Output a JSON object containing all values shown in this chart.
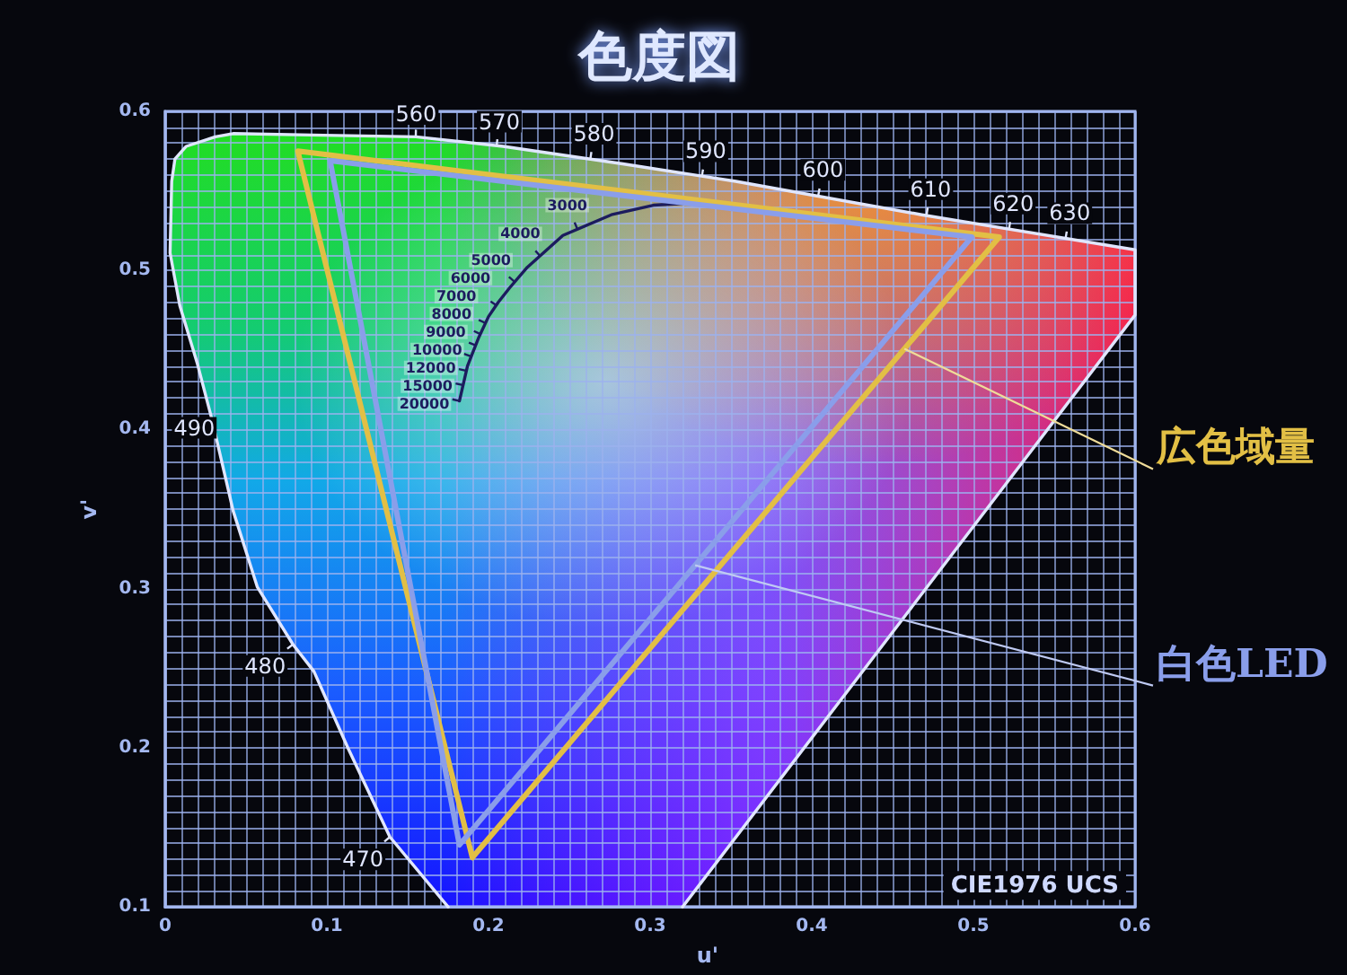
{
  "chart_data": {
    "type": "line",
    "title": "色度図",
    "xlabel": "u'",
    "ylabel": "v'",
    "xlim": [
      0,
      0.6
    ],
    "ylim": [
      0.1,
      0.6
    ],
    "xticks": [
      0,
      {
        "value": 0.01,
        "label": null
      },
      {
        "value": 0.02,
        "label": null
      },
      {
        "value": 0.03,
        "label": null
      },
      {
        "value": 0.04,
        "label": null
      },
      {
        "value": 0.05,
        "label": null
      },
      {
        "value": 0.06,
        "label": null
      },
      {
        "value": 0.07,
        "label": null
      },
      {
        "value": 0.08,
        "label": null
      },
      {
        "value": 0.09,
        "label": null
      },
      0.1,
      {
        "value": 0.11,
        "label": null
      },
      {
        "value": 0.12,
        "label": null
      },
      {
        "value": 0.13,
        "label": null
      },
      {
        "value": 0.14,
        "label": null
      },
      {
        "value": 0.15,
        "label": null
      },
      {
        "value": 0.16,
        "label": null
      },
      {
        "value": 0.17,
        "label": null
      },
      {
        "value": 0.18,
        "label": null
      },
      {
        "value": 0.19,
        "label": null
      },
      0.2,
      {
        "value": 0.21,
        "label": null
      },
      {
        "value": 0.22,
        "label": null
      },
      {
        "value": 0.23,
        "label": null
      },
      {
        "value": 0.24,
        "label": null
      },
      {
        "value": 0.25,
        "label": null
      },
      {
        "value": 0.26,
        "label": null
      },
      {
        "value": 0.27,
        "label": null
      },
      {
        "value": 0.28,
        "label": null
      },
      {
        "value": 0.29,
        "label": null
      },
      0.3,
      {
        "value": 0.31,
        "label": null
      },
      {
        "value": 0.32,
        "label": null
      },
      {
        "value": 0.33,
        "label": null
      },
      {
        "value": 0.34,
        "label": null
      },
      {
        "value": 0.35,
        "label": null
      },
      {
        "value": 0.36,
        "label": null
      },
      {
        "value": 0.37,
        "label": null
      },
      {
        "value": 0.38,
        "label": null
      },
      {
        "value": 0.39,
        "label": null
      },
      0.4,
      {
        "value": 0.41,
        "label": null
      },
      {
        "value": 0.42,
        "label": null
      },
      {
        "value": 0.43,
        "label": null
      },
      {
        "value": 0.44,
        "label": null
      },
      {
        "value": 0.45,
        "label": null
      },
      {
        "value": 0.46,
        "label": null
      },
      {
        "value": 0.47,
        "label": null
      },
      {
        "value": 0.48,
        "label": null
      },
      {
        "value": 0.49,
        "label": null
      },
      0.5,
      {
        "value": 0.51,
        "label": null
      },
      {
        "value": 0.52,
        "label": null
      },
      {
        "value": 0.53,
        "label": null
      },
      {
        "value": 0.54,
        "label": null
      },
      {
        "value": 0.55,
        "label": null
      },
      {
        "value": 0.56,
        "label": null
      },
      {
        "value": 0.57,
        "label": null
      },
      {
        "value": 0.58,
        "label": null
      },
      {
        "value": 0.59,
        "label": null
      },
      0.6
    ],
    "yticks": [
      0.1,
      {
        "value": 0.11,
        "label": null
      },
      {
        "value": 0.12,
        "label": null
      },
      {
        "value": 0.13,
        "label": null
      },
      {
        "value": 0.14,
        "label": null
      },
      {
        "value": 0.15,
        "label": null
      },
      {
        "value": 0.16,
        "label": null
      },
      {
        "value": 0.17,
        "label": null
      },
      {
        "value": 0.18,
        "label": null
      },
      {
        "value": 0.19,
        "label": null
      },
      0.2,
      {
        "value": 0.21,
        "label": null
      },
      {
        "value": 0.22,
        "label": null
      },
      {
        "value": 0.23,
        "label": null
      },
      {
        "value": 0.24,
        "label": null
      },
      {
        "value": 0.25,
        "label": null
      },
      {
        "value": 0.26,
        "label": null
      },
      {
        "value": 0.27,
        "label": null
      },
      {
        "value": 0.28,
        "label": null
      },
      {
        "value": 0.29,
        "label": null
      },
      0.3,
      {
        "value": 0.31,
        "label": null
      },
      {
        "value": 0.32,
        "label": null
      },
      {
        "value": 0.33,
        "label": null
      },
      {
        "value": 0.34,
        "label": null
      },
      {
        "value": 0.35,
        "label": null
      },
      {
        "value": 0.36,
        "label": null
      },
      {
        "value": 0.37,
        "label": null
      },
      {
        "value": 0.38,
        "label": null
      },
      {
        "value": 0.39,
        "label": null
      },
      0.4,
      {
        "value": 0.41,
        "label": null
      },
      {
        "value": 0.42,
        "label": null
      },
      {
        "value": 0.43,
        "label": null
      },
      {
        "value": 0.44,
        "label": null
      },
      {
        "value": 0.45,
        "label": null
      },
      {
        "value": 0.46,
        "label": null
      },
      {
        "value": 0.47,
        "label": null
      },
      {
        "value": 0.48,
        "label": null
      },
      {
        "value": 0.49,
        "label": null
      },
      0.5,
      {
        "value": 0.51,
        "label": null
      },
      {
        "value": 0.52,
        "label": null
      },
      {
        "value": 0.53,
        "label": null
      },
      {
        "value": 0.54,
        "label": null
      },
      {
        "value": 0.55,
        "label": null
      },
      {
        "value": 0.56,
        "label": null
      },
      {
        "value": 0.57,
        "label": null
      },
      {
        "value": 0.58,
        "label": null
      },
      {
        "value": 0.59,
        "label": null
      },
      0.6
    ],
    "grid": true,
    "marker": "none",
    "line_style": "solid",
    "series": [
      {
        "color": "#e0e6ff",
        "x": [
          0.175,
          0.139,
          0.113,
          0.092,
          0.079,
          0.057,
          0.042,
          0.029,
          0.02,
          0.009,
          0.003,
          0.004,
          0.006,
          0.013,
          0.031,
          0.042,
          0.098,
          0.155,
          0.209,
          0.283,
          0.353,
          0.468,
          0.6,
          0.6,
          0.32
        ],
        "values": [
          0.1,
          0.144,
          0.2,
          0.248,
          0.265,
          0.301,
          0.349,
          0.406,
          0.441,
          0.478,
          0.511,
          0.556,
          0.57,
          0.578,
          0.584,
          0.586,
          0.585,
          0.584,
          0.578,
          0.567,
          0.556,
          0.535,
          0.513,
          0.472,
          0.1
        ]
      },
      {
        "color": "#1c1c5e",
        "x": [
          0.182,
          0.187,
          0.194,
          0.2,
          0.206,
          0.213,
          0.224,
          0.246,
          0.276,
          0.302,
          0.32
        ],
        "values": [
          0.418,
          0.44,
          0.458,
          0.471,
          0.48,
          0.489,
          0.502,
          0.522,
          0.535,
          0.541,
          0.542
        ]
      },
      {
        "name": "広色域量",
        "color": "#e2bf45",
        "x": [
          0.082,
          0.516,
          0.19,
          0.082,
          0.516
        ],
        "values": [
          0.575,
          0.521,
          0.131,
          0.575,
          0.521
        ]
      },
      {
        "name": "白色LED",
        "color": "#8a9eea",
        "x": [
          0.102,
          0.499,
          0.182,
          0.102,
          0.499
        ],
        "values": [
          0.569,
          0.521,
          0.139,
          0.569,
          0.521
        ]
      }
    ],
    "annotations": [
      {
        "text": "3000",
        "x": 0.255,
        "y": 0.526
      },
      {
        "text": "4000",
        "x": 0.232,
        "y": 0.509
      },
      {
        "text": "5000",
        "x": 0.216,
        "y": 0.493
      },
      {
        "text": "6000",
        "x": 0.205,
        "y": 0.478
      },
      {
        "text": "7000",
        "x": 0.198,
        "y": 0.467
      },
      {
        "text": "8000",
        "x": 0.195,
        "y": 0.46
      },
      {
        "text": "9000",
        "x": 0.192,
        "y": 0.453
      },
      {
        "text": "10000",
        "x": 0.189,
        "y": 0.446
      },
      {
        "text": "12000",
        "x": 0.186,
        "y": 0.437
      },
      {
        "text": "15000",
        "x": 0.184,
        "y": 0.428
      },
      {
        "text": "20000",
        "x": 0.182,
        "y": 0.418
      },
      {
        "text": "470",
        "x": 0.139,
        "y": 0.144
      },
      {
        "text": "480",
        "x": 0.079,
        "y": 0.265
      },
      {
        "text": "490",
        "x": 0.029,
        "y": 0.406
      },
      {
        "text": "560",
        "x": 0.155,
        "y": 0.584
      },
      {
        "text": "570",
        "x": 0.205,
        "y": 0.578
      },
      {
        "text": "580",
        "x": 0.263,
        "y": 0.57
      },
      {
        "text": "590",
        "x": 0.332,
        "y": 0.559
      },
      {
        "text": "600",
        "x": 0.404,
        "y": 0.547
      },
      {
        "text": "610",
        "x": 0.471,
        "y": 0.535
      },
      {
        "text": "620",
        "x": 0.522,
        "y": 0.526
      },
      {
        "text": "630",
        "x": 0.557,
        "y": 0.52
      },
      "CIE1976 UCS"
    ]
  }
}
